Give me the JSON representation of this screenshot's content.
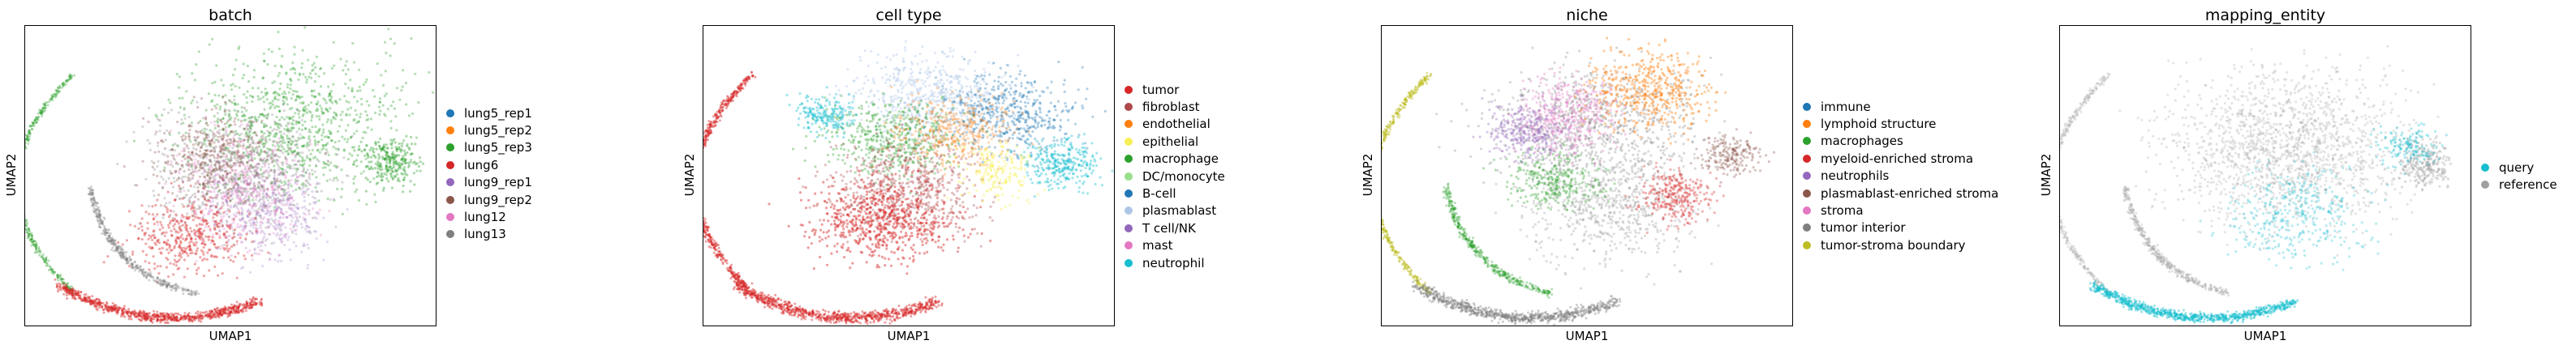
{
  "chart_data": [
    {
      "type": "scatter",
      "title": "batch",
      "xlabel": "UMAP1",
      "ylabel": "UMAP2",
      "grid": false,
      "legend_position": "right",
      "legend": [
        {
          "label": "lung5_rep1",
          "color": "#1f77b4"
        },
        {
          "label": "lung5_rep2",
          "color": "#ff7f0e"
        },
        {
          "label": "lung5_rep3",
          "color": "#2ca02c"
        },
        {
          "label": "lung6",
          "color": "#d62728"
        },
        {
          "label": "lung9_rep1",
          "color": "#9467bd"
        },
        {
          "label": "lung9_rep2",
          "color": "#8c564b"
        },
        {
          "label": "lung12",
          "color": "#e377c2"
        },
        {
          "label": "lung13",
          "color": "#7f7f7f"
        }
      ]
    },
    {
      "type": "scatter",
      "title": "cell type",
      "xlabel": "UMAP1",
      "ylabel": "UMAP2",
      "grid": false,
      "legend_position": "right",
      "legend": [
        {
          "label": "tumor",
          "color": "#d62728"
        },
        {
          "label": "fibroblast",
          "color": "#ad494a"
        },
        {
          "label": "endothelial",
          "color": "#ff7f0e"
        },
        {
          "label": "epithelial",
          "color": "#f7f056"
        },
        {
          "label": "macrophage",
          "color": "#2ca02c"
        },
        {
          "label": "DC/monocyte",
          "color": "#98df8a"
        },
        {
          "label": "B-cell",
          "color": "#1f77b4"
        },
        {
          "label": "plasmablast",
          "color": "#aec7e8"
        },
        {
          "label": "T cell/NK",
          "color": "#9467bd"
        },
        {
          "label": "mast",
          "color": "#e377c2"
        },
        {
          "label": "neutrophil",
          "color": "#17becf"
        }
      ]
    },
    {
      "type": "scatter",
      "title": "niche",
      "xlabel": "UMAP1",
      "ylabel": "UMAP2",
      "grid": false,
      "legend_position": "right",
      "legend": [
        {
          "label": "immune",
          "color": "#1f77b4"
        },
        {
          "label": "lymphoid structure",
          "color": "#ff7f0e"
        },
        {
          "label": "macrophages",
          "color": "#2ca02c"
        },
        {
          "label": "myeloid-enriched stroma",
          "color": "#d62728"
        },
        {
          "label": "neutrophils",
          "color": "#9467bd"
        },
        {
          "label": "plasmablast-enriched stroma",
          "color": "#8c564b"
        },
        {
          "label": "stroma",
          "color": "#e377c2"
        },
        {
          "label": "tumor interior",
          "color": "#7f7f7f"
        },
        {
          "label": "tumor-stroma boundary",
          "color": "#bcbd22"
        }
      ]
    },
    {
      "type": "scatter",
      "title": "mapping_entity",
      "xlabel": "UMAP1",
      "ylabel": "UMAP2",
      "grid": false,
      "legend_position": "right",
      "legend": [
        {
          "label": "query",
          "color": "#17becf"
        },
        {
          "label": "reference",
          "color": "#a0a0a0"
        }
      ]
    }
  ]
}
